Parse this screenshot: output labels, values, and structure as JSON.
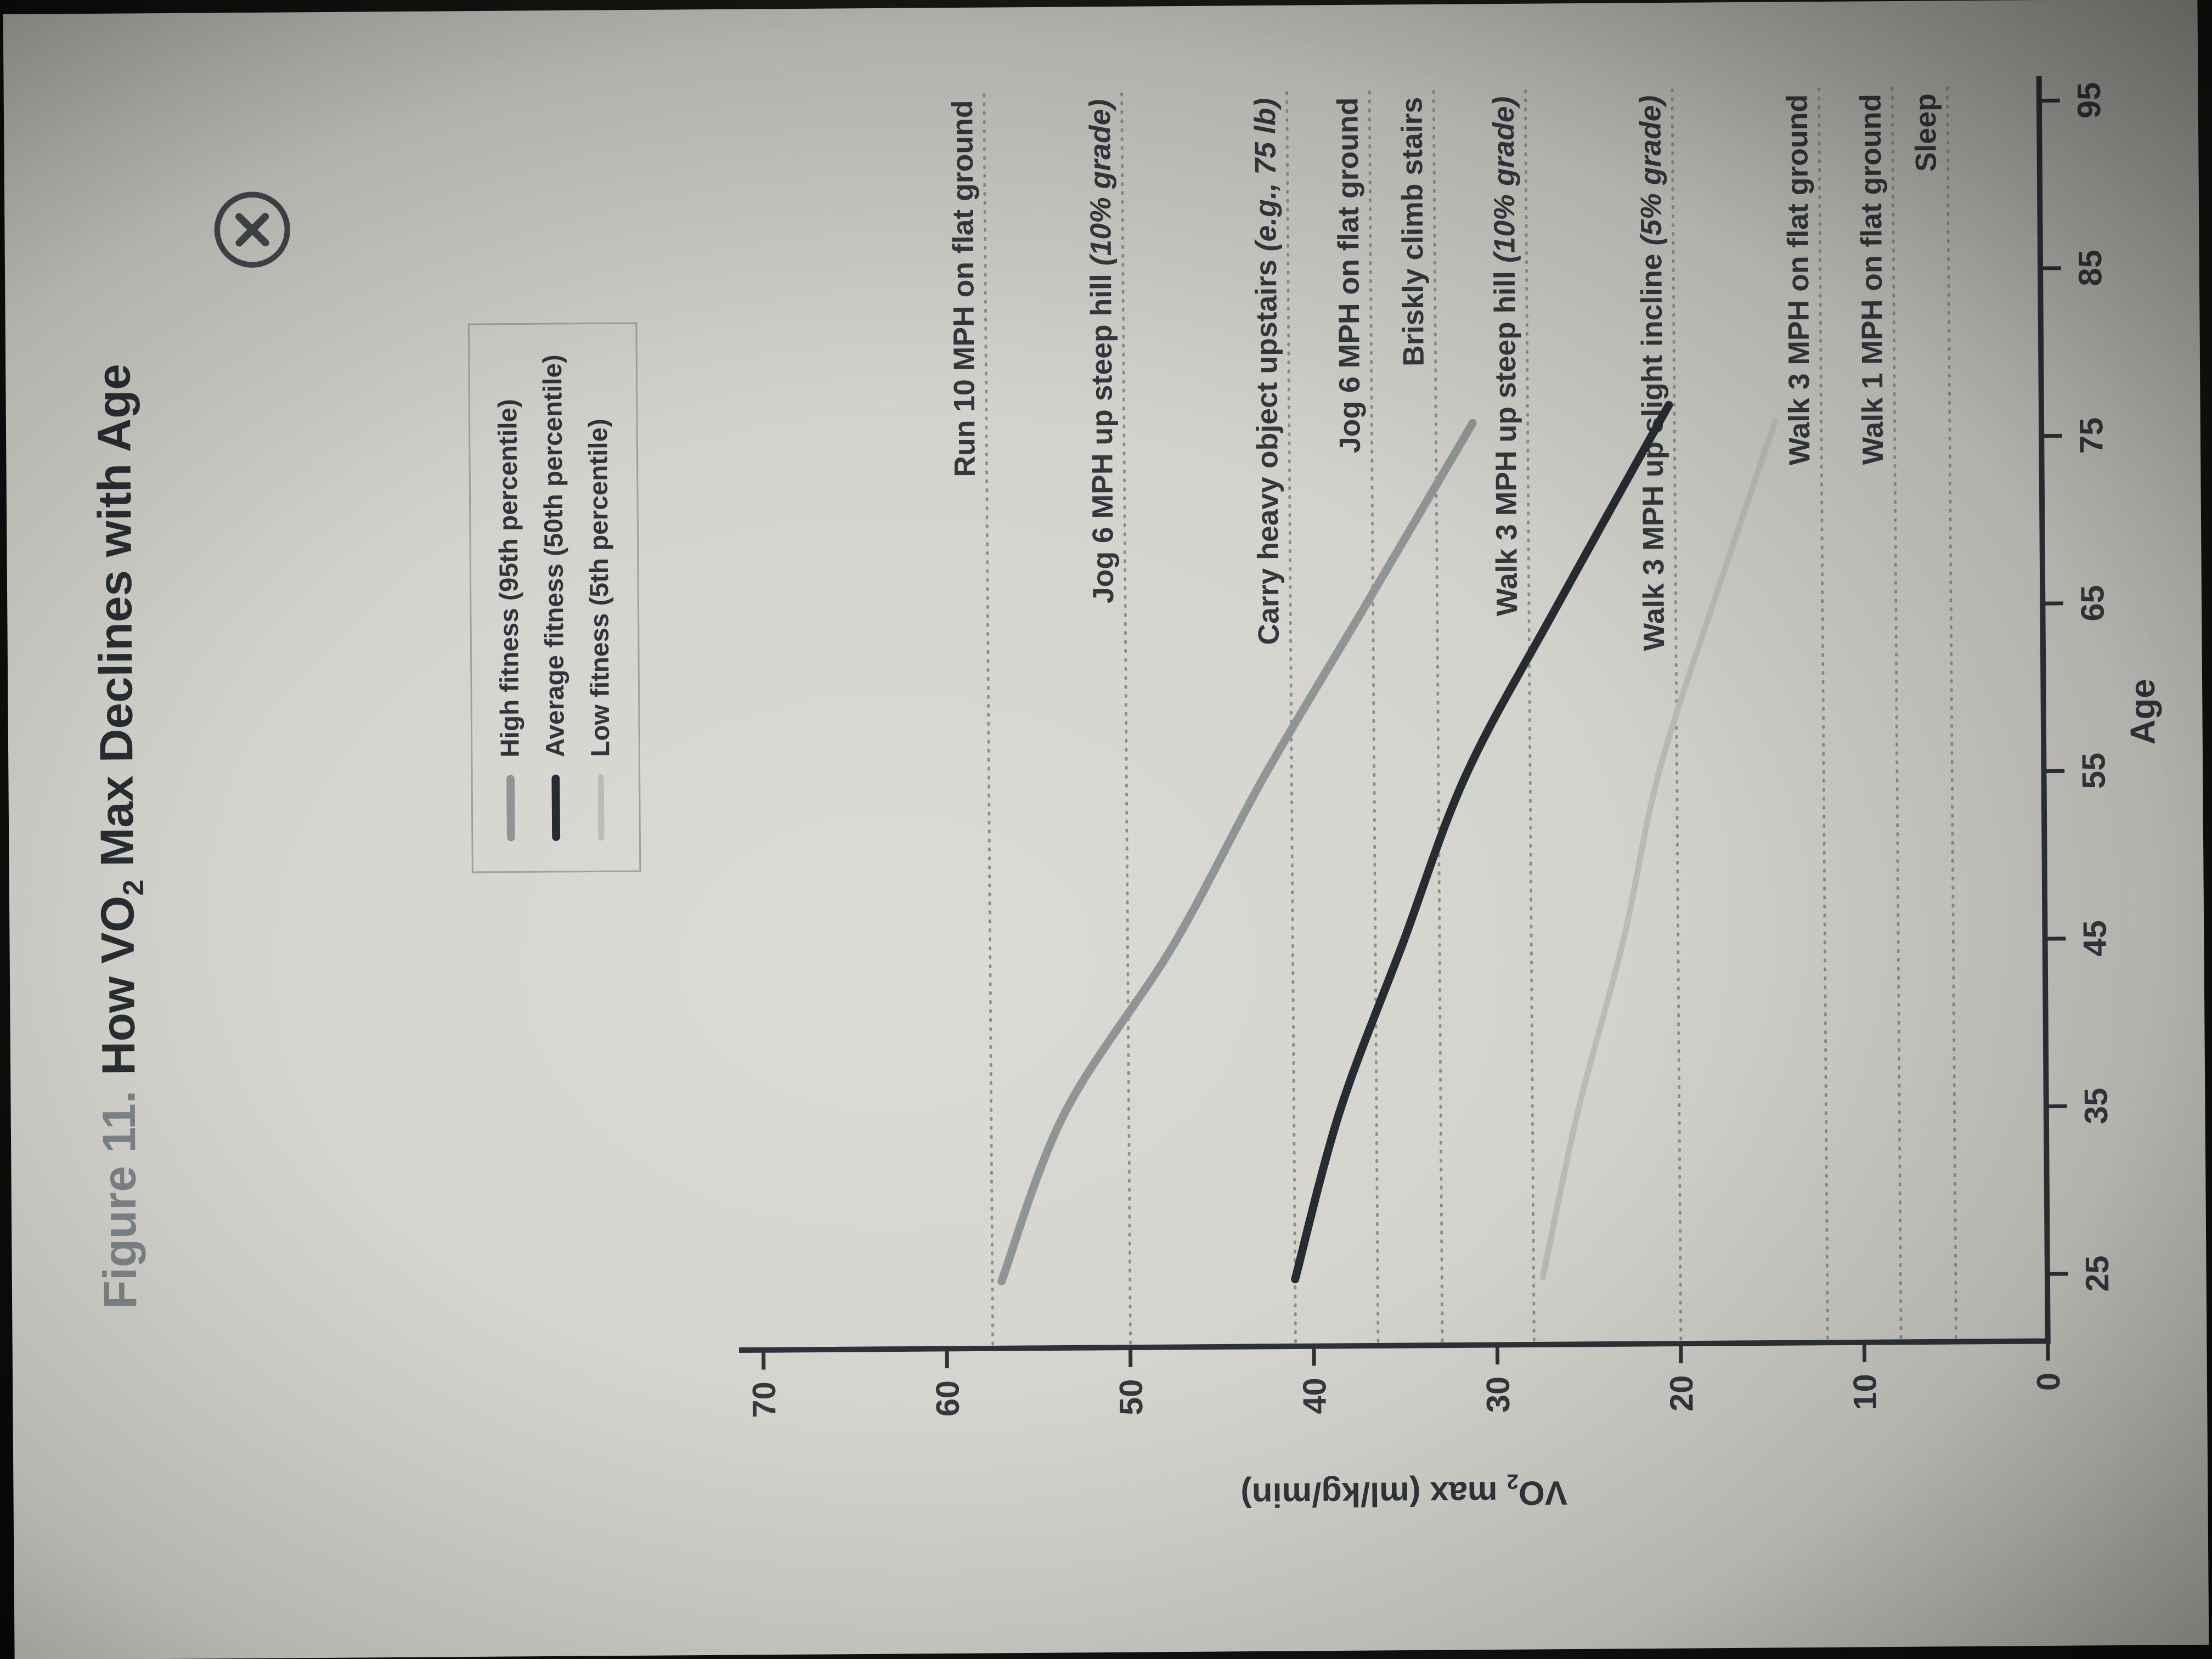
{
  "window": {
    "close_icon": "x-in-circle"
  },
  "figure": {
    "title_prefix": "Figure 11.",
    "title_pre_sub": "How VO",
    "title_sub": "2",
    "title_post_sub": " Max Declines with Age"
  },
  "y_axis_label": {
    "pre": "VO",
    "sub": "2",
    "post": " max (ml/kg/min)"
  },
  "chart_data": {
    "type": "line",
    "title": "Figure 11. How VO2 Max Declines with Age",
    "xlabel": "Age",
    "ylabel": "VO2 max (ml/kg/min)",
    "xlim": [
      21,
      96
    ],
    "ylim": [
      0,
      70
    ],
    "x_ticks": [
      25,
      35,
      45,
      55,
      65,
      75,
      85,
      95
    ],
    "y_ticks": [
      0,
      10,
      20,
      30,
      40,
      50,
      60,
      70
    ],
    "grid": false,
    "legend_position": "top-inside",
    "series": [
      {
        "name": "High fitness (95th percentile)",
        "color": "#8e9594",
        "stroke_width": 15,
        "x": [
          25,
          35,
          45,
          55,
          65,
          76
        ],
        "y": [
          57,
          53.5,
          47.5,
          42.5,
          37,
          31
        ]
      },
      {
        "name": "Average fitness (50th percentile)",
        "color": "#262c31",
        "stroke_width": 15,
        "x": [
          25,
          35,
          45,
          55,
          65,
          77
        ],
        "y": [
          41,
          38.5,
          35,
          31.5,
          26.5,
          20.3
        ]
      },
      {
        "name": "Low fitness (5th percentile)",
        "color": "#b9bcb6",
        "stroke_width": 11,
        "x": [
          25,
          35,
          45,
          55,
          65,
          76
        ],
        "y": [
          27.5,
          25.5,
          23,
          21,
          18,
          14.5
        ]
      }
    ],
    "reference_lines": [
      {
        "value": 57.5,
        "label": "Run 10 MPH on flat ground",
        "note": ""
      },
      {
        "value": 50,
        "label": "Jog 6 MPH up steep hill",
        "note": "(10% grade)"
      },
      {
        "value": 41,
        "label": "Carry heavy object upstairs",
        "note": "(e.g., 75 lb)"
      },
      {
        "value": 36.5,
        "label": "Jog 6 MPH on flat ground",
        "note": ""
      },
      {
        "value": 33,
        "label": "Briskly climb stairs",
        "note": ""
      },
      {
        "value": 28,
        "label": "Walk 3 MPH up steep hill",
        "note": "(10% grade)"
      },
      {
        "value": 20,
        "label": "Walk 3 MPH up slight incline",
        "note": "(5% grade)"
      },
      {
        "value": 12,
        "label": "Walk 3 MPH on flat ground",
        "note": ""
      },
      {
        "value": 8,
        "label": "Walk 1 MPH on flat ground",
        "note": ""
      },
      {
        "value": 5,
        "label": "Sleep",
        "note": ""
      }
    ]
  }
}
